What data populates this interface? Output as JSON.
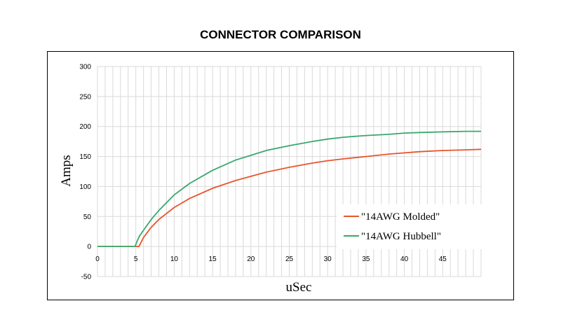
{
  "chart_data": {
    "type": "line",
    "title": "CONNECTOR COMPARISON",
    "xlabel": "uSec",
    "ylabel": "Amps",
    "xlim": [
      0,
      50
    ],
    "ylim": [
      -50,
      300
    ],
    "x_ticks": [
      0,
      5,
      10,
      15,
      20,
      25,
      30,
      35,
      40,
      45
    ],
    "y_ticks": [
      -50,
      0,
      50,
      100,
      150,
      200,
      250,
      300
    ],
    "grid": "vertical every 1 uSec, horizontal at y ticks",
    "legend_position": "bottom-right",
    "series": [
      {
        "name": "\"14AWG Molded\"",
        "color": "#e8542c",
        "x": [
          0,
          5.4,
          5.6,
          6,
          7,
          8,
          10,
          12,
          15,
          18,
          20,
          22,
          25,
          28,
          30,
          32,
          35,
          38,
          40,
          42,
          45,
          48,
          50
        ],
        "y": [
          0,
          0,
          5,
          15,
          32,
          45,
          65,
          80,
          97,
          110,
          117,
          124,
          132,
          139,
          143,
          146,
          150,
          154,
          156,
          158,
          160,
          161,
          162
        ]
      },
      {
        "name": "\"14AWG Hubbell\"",
        "color": "#3aa76d",
        "x": [
          0,
          4.9,
          5.2,
          5.5,
          6,
          7,
          8,
          10,
          12,
          15,
          18,
          20,
          22,
          25,
          28,
          30,
          32,
          35,
          38,
          40,
          42,
          45,
          48,
          50
        ],
        "y": [
          0,
          0,
          10,
          18,
          27,
          45,
          60,
          86,
          105,
          127,
          144,
          152,
          160,
          168,
          175,
          179,
          182,
          185,
          187,
          189,
          190,
          191,
          192,
          192
        ]
      }
    ]
  }
}
